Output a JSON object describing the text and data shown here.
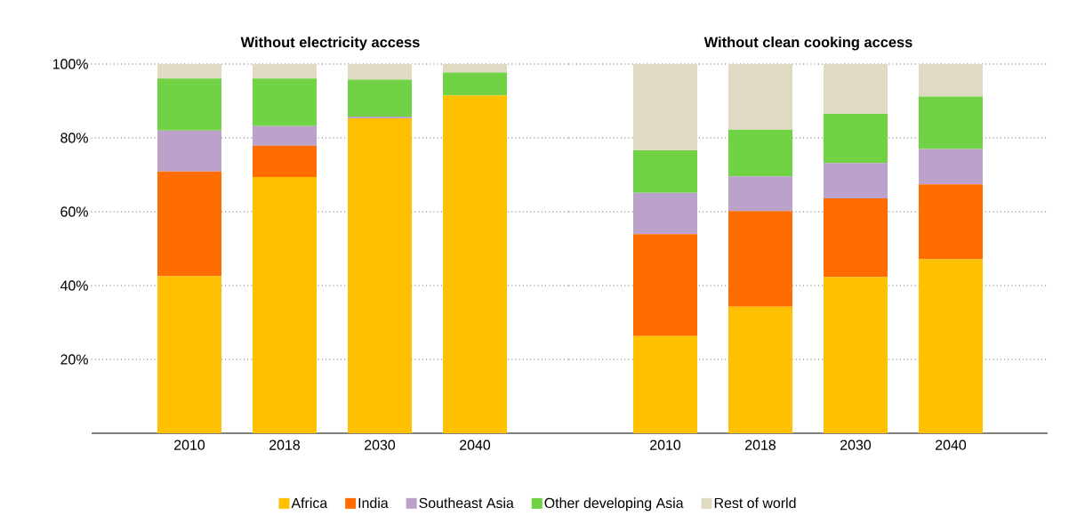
{
  "chart_data": [
    {
      "type": "bar",
      "title": "Without electricity access",
      "stacked": true,
      "categories": [
        "2010",
        "2018",
        "2030",
        "2040"
      ],
      "ylim": [
        0,
        100
      ],
      "yticks": [
        {
          "value": 20,
          "label": "20%"
        },
        {
          "value": 40,
          "label": "40%"
        },
        {
          "value": 60,
          "label": "60%"
        },
        {
          "value": 80,
          "label": "80%"
        },
        {
          "value": 100,
          "label": "100%"
        }
      ],
      "grid": "y",
      "legend": "bottom",
      "series": [
        {
          "name": "Africa",
          "color": "#ffc000",
          "values": [
            42.5,
            69.4,
            85.3,
            91.5
          ]
        },
        {
          "name": "India",
          "color": "#ff6d00",
          "values": [
            28.4,
            8.5,
            0,
            0
          ]
        },
        {
          "name": "Southeast Asia",
          "color": "#bba2ca",
          "values": [
            11.1,
            5.3,
            0.5,
            0
          ]
        },
        {
          "name": "Other developing Asia",
          "color": "#70d244",
          "values": [
            14.1,
            12.9,
            10.0,
            6.2
          ]
        },
        {
          "name": "Rest of world",
          "color": "#e0dac3",
          "values": [
            3.9,
            3.9,
            4.2,
            2.3
          ]
        }
      ]
    },
    {
      "type": "bar",
      "title": "Without clean cooking access",
      "stacked": true,
      "categories": [
        "2010",
        "2018",
        "2030",
        "2040"
      ],
      "ylim": [
        0,
        100
      ],
      "yticks": [
        {
          "value": 20,
          "label": null
        },
        {
          "value": 40,
          "label": null
        },
        {
          "value": 60,
          "label": null
        },
        {
          "value": 80,
          "label": null
        },
        {
          "value": 100,
          "label": null
        }
      ],
      "grid": "y",
      "tick_labels": "x",
      "series": [
        {
          "color": "#ffc000",
          "values": [
            26.3,
            34.3,
            42.3,
            47.1
          ]
        },
        {
          "color": "#ff6d00",
          "values": [
            27.6,
            25.9,
            21.3,
            20.3
          ]
        },
        {
          "color": "#bba2ca",
          "values": [
            11.2,
            9.4,
            9.6,
            9.6
          ]
        },
        {
          "color": "#70d244",
          "values": [
            11.5,
            12.6,
            13.3,
            14.2
          ]
        },
        {
          "color": "#e0dac3",
          "values": [
            23.4,
            17.8,
            13.5,
            8.8
          ]
        }
      ]
    }
  ]
}
